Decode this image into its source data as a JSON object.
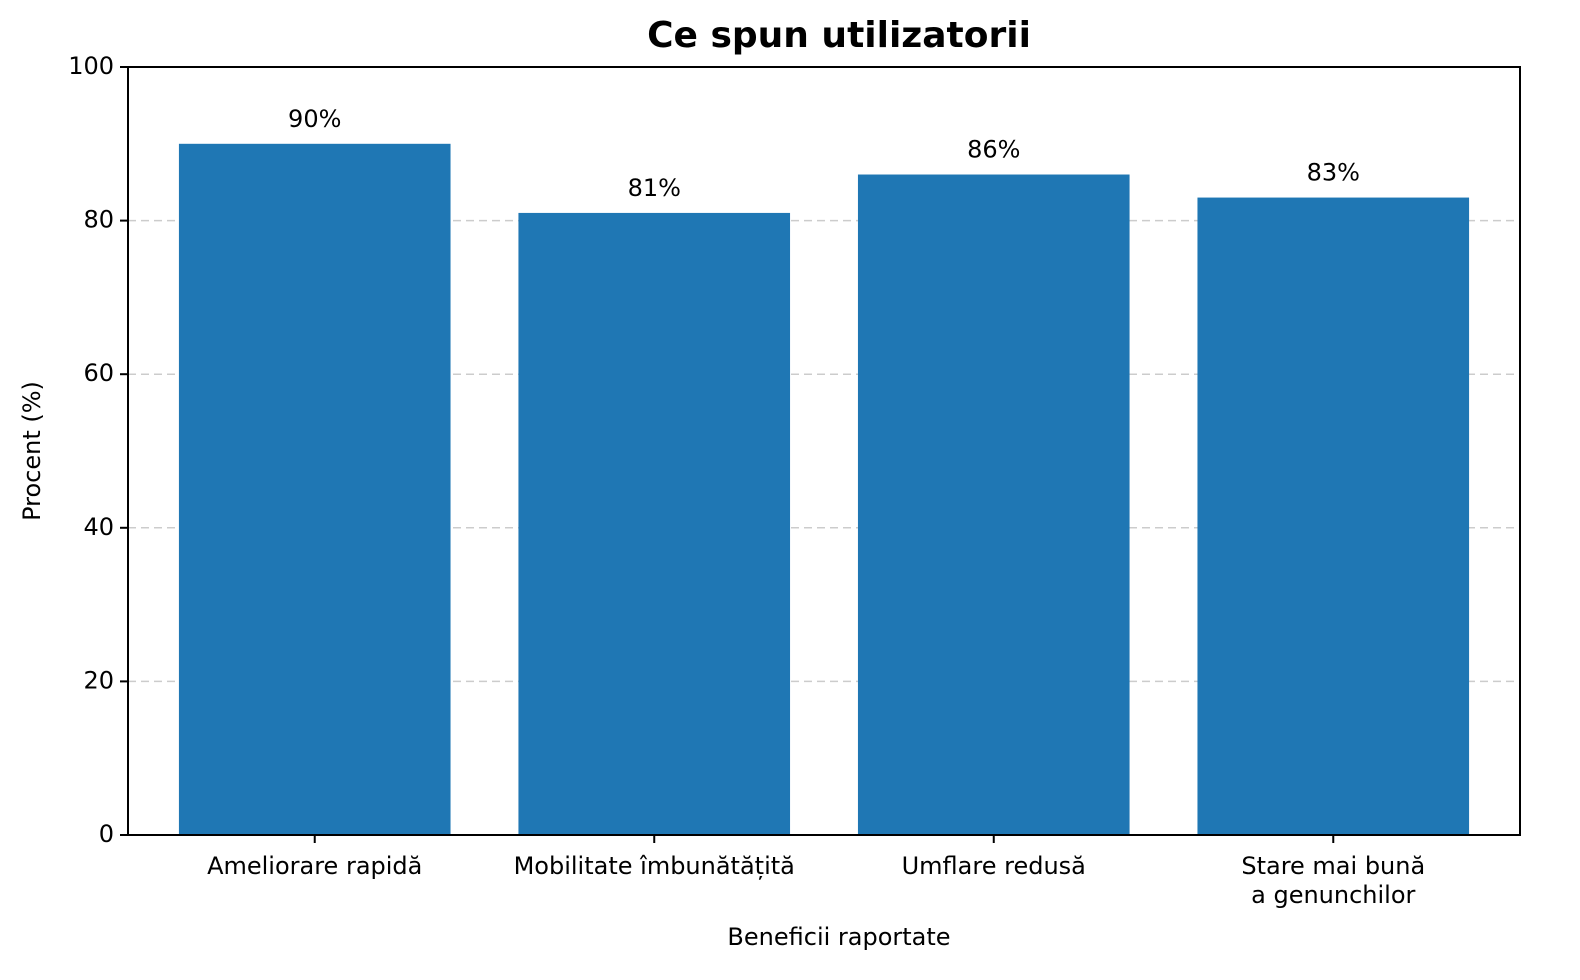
{
  "chart_data": {
    "type": "bar",
    "title": "Ce spun utilizatorii",
    "x_label": "Beneficii raportate",
    "y_label": "Procent (%)",
    "categories": [
      "Ameliorare rapidă",
      "Mobilitate îmbunătățită",
      "Umflare redusă",
      "Stare mai bună\na genunchilor"
    ],
    "values": [
      90,
      81,
      86,
      83
    ],
    "value_labels": [
      "90%",
      "81%",
      "86%",
      "83%"
    ],
    "color": "#1f77b4",
    "ylim": [
      0,
      100
    ],
    "yticks": [
      0,
      20,
      40,
      60,
      80,
      100
    ],
    "grid": true
  }
}
